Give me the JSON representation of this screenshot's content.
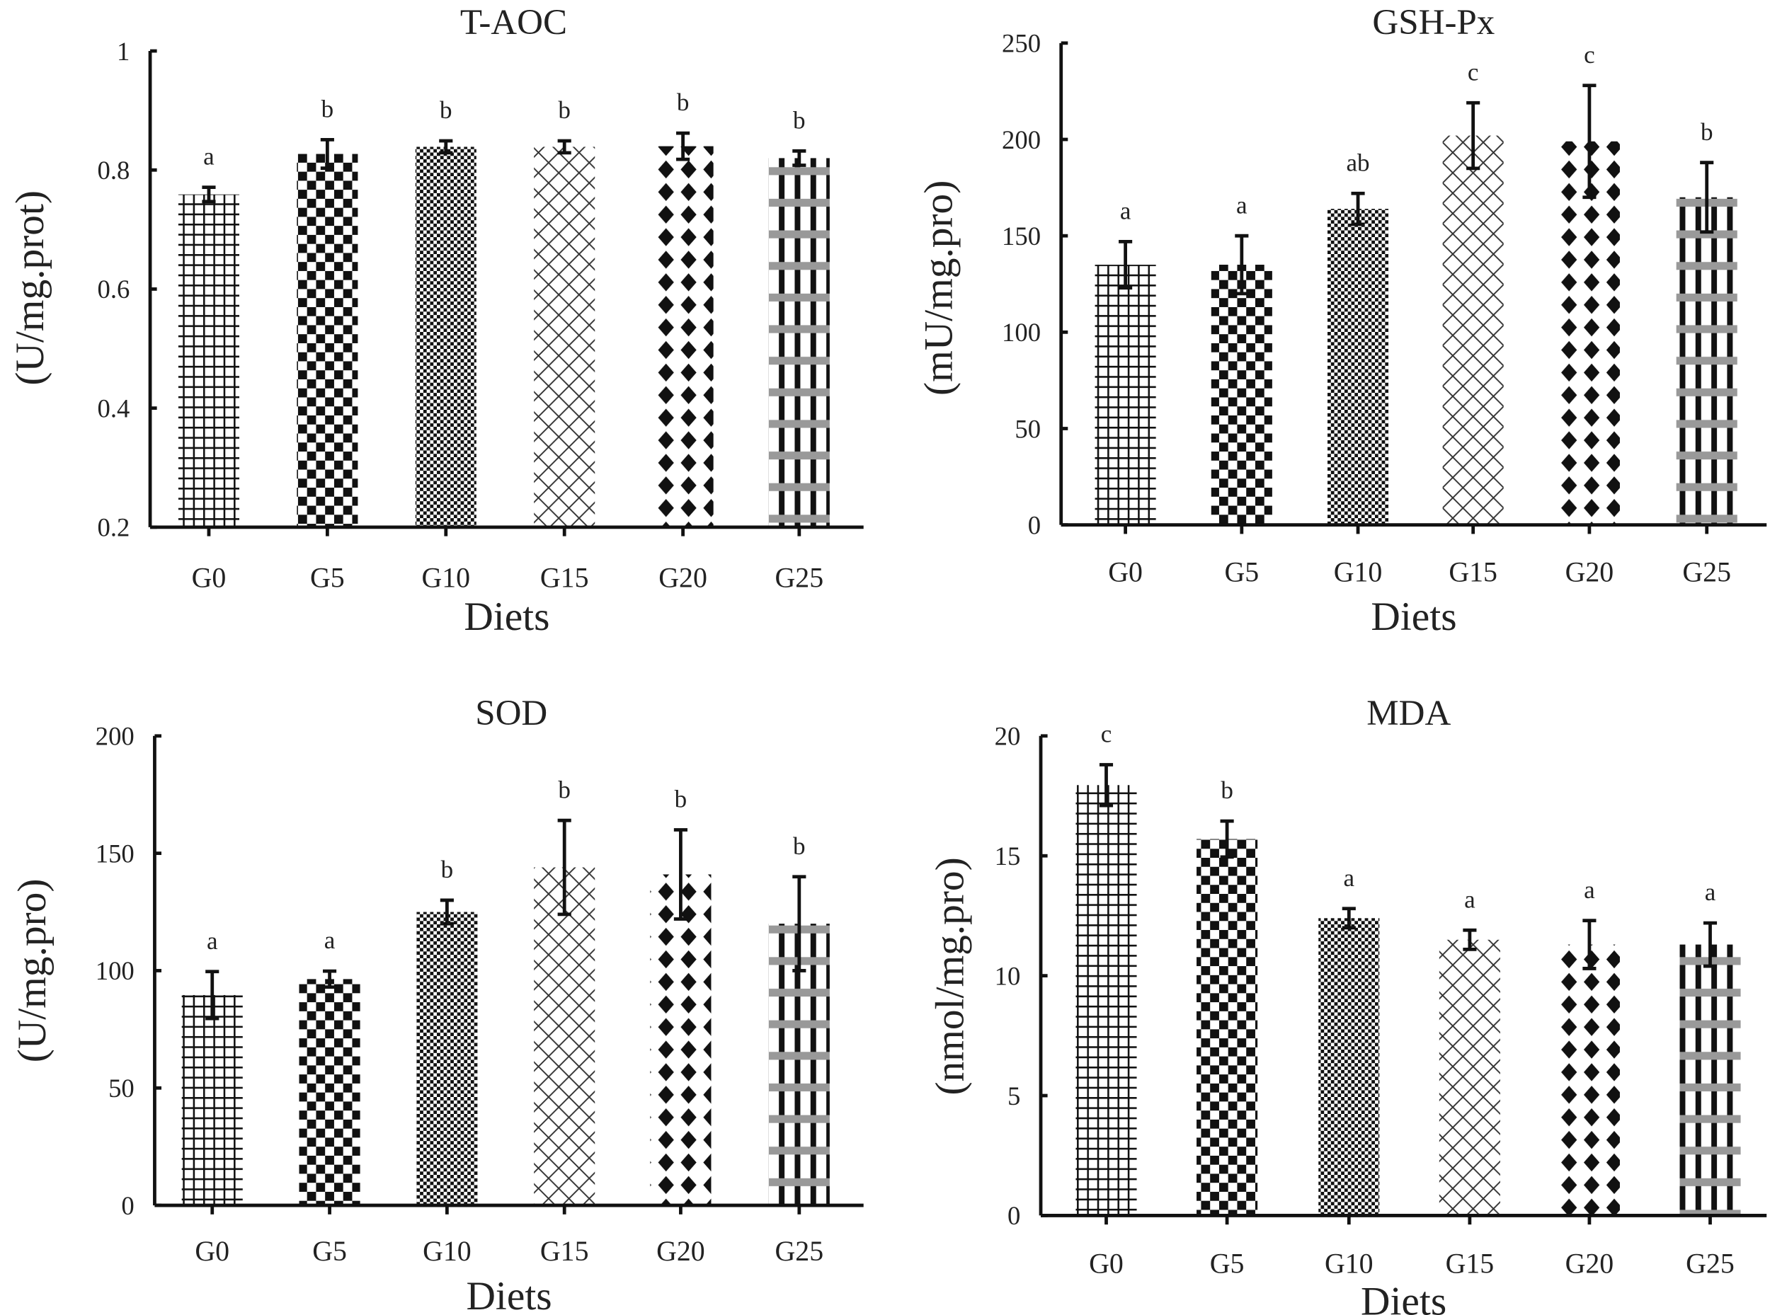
{
  "chart_data": [
    {
      "type": "bar",
      "title": "T-AOC",
      "xlabel": "Diets",
      "ylabel": "(U/mg.prot)",
      "categories": [
        "G0",
        "G5",
        "G10",
        "G15",
        "G20",
        "G25"
      ],
      "values": [
        0.759,
        0.827,
        0.839,
        0.839,
        0.84,
        0.82
      ],
      "errors": [
        0.012,
        0.024,
        0.01,
        0.01,
        0.022,
        0.012
      ],
      "significance": [
        "a",
        "b",
        "b",
        "b",
        "b",
        "b"
      ],
      "ylim": [
        0.2,
        1
      ],
      "yticks": [
        0.2,
        0.4,
        0.6,
        0.8,
        1
      ],
      "ytick_labels": [
        "0.2",
        "0.4",
        "0.6",
        "0.8",
        "1"
      ],
      "grid": false
    },
    {
      "type": "bar",
      "title": "GSH-Px",
      "xlabel": "Diets",
      "ylabel": "(mU/mg.pro)",
      "categories": [
        "G0",
        "G5",
        "G10",
        "G15",
        "G20",
        "G25"
      ],
      "values": [
        135,
        135,
        164,
        202,
        199,
        170
      ],
      "errors": [
        12,
        15,
        8,
        17,
        29,
        18
      ],
      "significance": [
        "a",
        "a",
        "ab",
        "c",
        "c",
        "b"
      ],
      "ylim": [
        0,
        250
      ],
      "yticks": [
        0,
        50,
        100,
        150,
        200,
        250
      ],
      "ytick_labels": [
        "0",
        "50",
        "100",
        "150",
        "200",
        "250"
      ],
      "grid": false
    },
    {
      "type": "bar",
      "title": "SOD",
      "xlabel": "Diets",
      "ylabel": "(U/mg.pro)",
      "categories": [
        "G0",
        "G5",
        "G10",
        "G15",
        "G20",
        "G25"
      ],
      "values": [
        89.6,
        96.4,
        125,
        144,
        141,
        120
      ],
      "errors": [
        10,
        3.4,
        5,
        20,
        19,
        20
      ],
      "significance": [
        "a",
        "a",
        "b",
        "b",
        "b",
        "b"
      ],
      "ylim": [
        0,
        200
      ],
      "yticks": [
        0,
        50,
        100,
        150,
        200
      ],
      "ytick_labels": [
        "0",
        "50",
        "100",
        "150",
        "200"
      ],
      "grid": false
    },
    {
      "type": "bar",
      "title": "MDA",
      "xlabel": "Diets",
      "ylabel": "(nmol/mg.pro)",
      "categories": [
        "G0",
        "G5",
        "G10",
        "G15",
        "G20",
        "G25"
      ],
      "values": [
        17.95,
        15.7,
        12.4,
        11.5,
        11.3,
        11.3
      ],
      "errors": [
        0.85,
        0.75,
        0.4,
        0.4,
        1.0,
        0.9
      ],
      "significance": [
        "c",
        "b",
        "a",
        "a",
        "a",
        "a"
      ],
      "ylim": [
        0,
        20
      ],
      "yticks": [
        0,
        5,
        10,
        15,
        20
      ],
      "ytick_labels": [
        "0",
        "5",
        "10",
        "15",
        "20"
      ],
      "grid": false
    }
  ]
}
